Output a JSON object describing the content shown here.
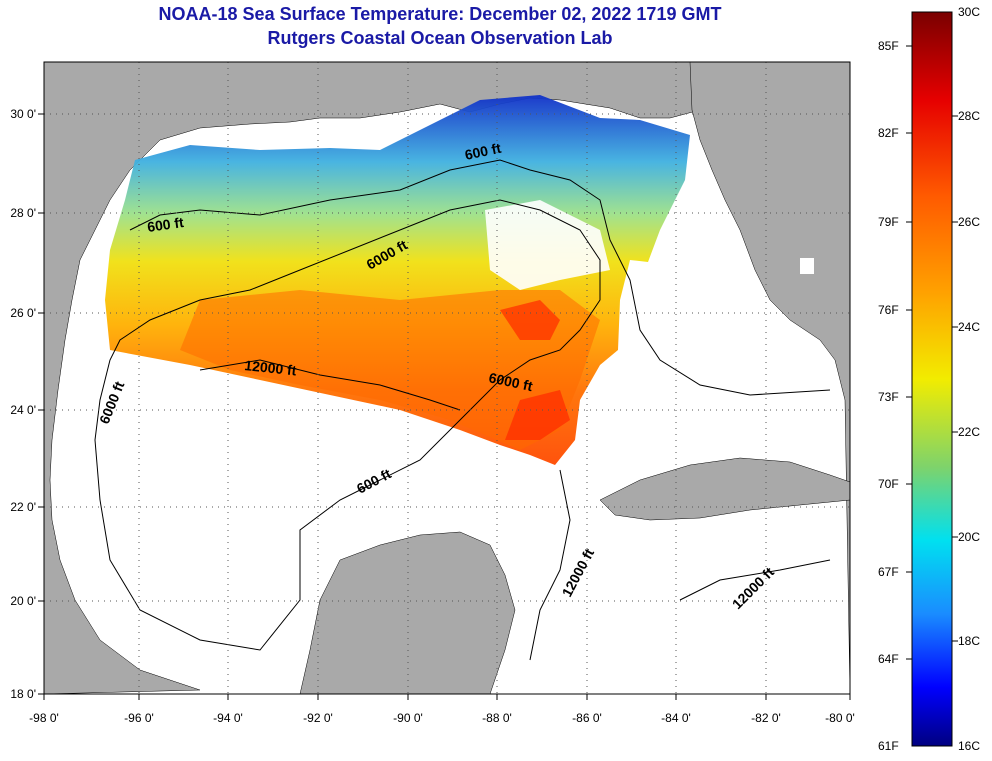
{
  "title": "NOAA-18 Sea Surface Temperature:  December 02, 2022 1719 GMT",
  "subtitle": "Rutgers Coastal Ocean Observation Lab",
  "lat_ticks": [
    "30 0'",
    "28 0'",
    "26 0'",
    "24 0'",
    "22 0'",
    "20 0'",
    "18 0'"
  ],
  "lon_ticks": [
    "-98 0'",
    "-96 0'",
    "-94 0'",
    "-92 0'",
    "-90 0'",
    "-88 0'",
    "-86 0'",
    "-84 0'",
    "-82 0'",
    "-80 0'"
  ],
  "contour_labels": [
    "600 ft",
    "600 ft",
    "600 ft",
    "6000 ft",
    "6000 ft",
    "6000 ft",
    "12000 ft",
    "12000 ft",
    "12000 ft"
  ],
  "colorbar": {
    "fahrenheit": [
      "85F",
      "82F",
      "79F",
      "76F",
      "73F",
      "70F",
      "67F",
      "64F",
      "61F"
    ],
    "celsius": [
      "30C",
      "28C",
      "26C",
      "24C",
      "22C",
      "20C",
      "18C",
      "16C"
    ]
  },
  "colors": {
    "land": "#a9a9a9",
    "title": "#1a1aa6"
  }
}
